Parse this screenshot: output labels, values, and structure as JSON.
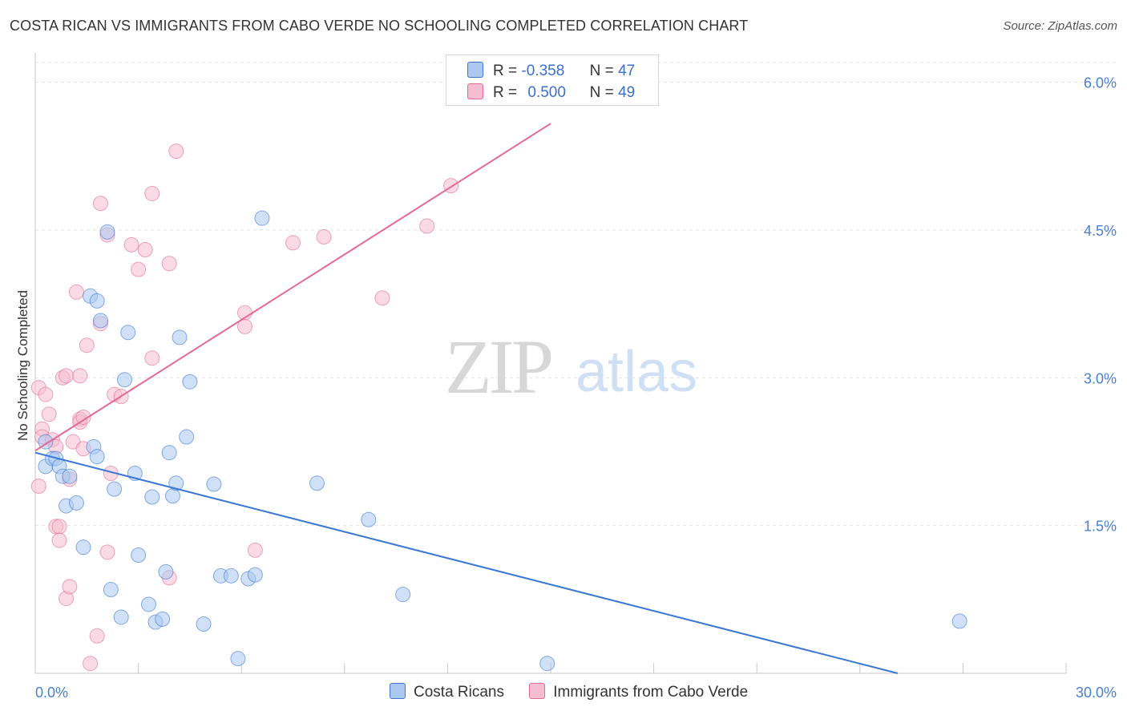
{
  "title": "COSTA RICAN VS IMMIGRANTS FROM CABO VERDE NO SCHOOLING COMPLETED CORRELATION CHART",
  "source": "Source: ZipAtlas.com",
  "watermark": {
    "zip": "ZIP",
    "atlas": "atlas"
  },
  "colors": {
    "blue": "#3a78d4",
    "pink": "#e36a93",
    "blue_fill": "#aac8f0",
    "pink_fill": "#f5bdd0"
  },
  "legend": {
    "rows": [
      {
        "r_label": "R =",
        "r_value": "-0.358",
        "n_label": "N =",
        "n_value": "47"
      },
      {
        "r_label": "R =",
        "r_value": "0.500",
        "n_label": "N =",
        "n_value": "49"
      }
    ]
  },
  "bottom_legend": [
    "Costa Ricans",
    "Immigrants from Cabo Verde"
  ],
  "chart_data": {
    "type": "scatter",
    "title": "COSTA RICAN VS IMMIGRANTS FROM CABO VERDE NO SCHOOLING COMPLETED CORRELATION CHART",
    "xlabel": "",
    "ylabel": "No Schooling Completed",
    "xlim": [
      0,
      30
    ],
    "ylim": [
      0,
      6.2
    ],
    "x_tick_labels": [
      "0.0%",
      "30.0%"
    ],
    "y_ticks": [
      1.5,
      3.0,
      4.5,
      6.0
    ],
    "y_tick_labels": [
      "1.5%",
      "3.0%",
      "4.5%",
      "6.0%"
    ],
    "series": [
      {
        "name": "Costa Ricans",
        "r": -0.358,
        "n": 47,
        "trend": [
          [
            0,
            2.24
          ],
          [
            25.1,
            0
          ]
        ],
        "points": [
          [
            0.3,
            2.35
          ],
          [
            0.3,
            2.1
          ],
          [
            0.5,
            2.18
          ],
          [
            0.6,
            2.18
          ],
          [
            0.7,
            2.1
          ],
          [
            0.8,
            2.0
          ],
          [
            0.9,
            1.7
          ],
          [
            1.0,
            2.0
          ],
          [
            1.2,
            1.73
          ],
          [
            1.4,
            1.28
          ],
          [
            1.6,
            3.83
          ],
          [
            1.7,
            2.3
          ],
          [
            1.8,
            3.78
          ],
          [
            1.8,
            2.2
          ],
          [
            1.9,
            3.58
          ],
          [
            2.1,
            4.48
          ],
          [
            2.2,
            0.85
          ],
          [
            2.3,
            1.87
          ],
          [
            2.5,
            0.57
          ],
          [
            2.6,
            2.98
          ],
          [
            2.7,
            3.46
          ],
          [
            2.9,
            2.03
          ],
          [
            3.0,
            1.2
          ],
          [
            3.3,
            0.7
          ],
          [
            3.4,
            1.79
          ],
          [
            3.5,
            0.52
          ],
          [
            3.7,
            0.55
          ],
          [
            3.8,
            1.03
          ],
          [
            3.9,
            2.24
          ],
          [
            4.0,
            1.8
          ],
          [
            4.1,
            1.93
          ],
          [
            4.2,
            3.41
          ],
          [
            4.4,
            2.4
          ],
          [
            4.5,
            2.96
          ],
          [
            4.9,
            0.5
          ],
          [
            5.2,
            1.92
          ],
          [
            5.4,
            0.99
          ],
          [
            5.7,
            0.99
          ],
          [
            5.9,
            0.15
          ],
          [
            6.2,
            0.96
          ],
          [
            6.4,
            1.0
          ],
          [
            6.6,
            4.62
          ],
          [
            8.2,
            1.93
          ],
          [
            9.7,
            1.56
          ],
          [
            10.7,
            0.8
          ],
          [
            14.9,
            0.1
          ],
          [
            26.9,
            0.53
          ]
        ]
      },
      {
        "name": "Immigrants from Cabo Verde",
        "r": 0.5,
        "n": 49,
        "trend": [
          [
            0,
            2.26
          ],
          [
            15.0,
            5.58
          ]
        ],
        "points": [
          [
            0.1,
            2.9
          ],
          [
            0.1,
            1.9
          ],
          [
            0.2,
            2.48
          ],
          [
            0.2,
            2.4
          ],
          [
            0.3,
            2.83
          ],
          [
            0.4,
            2.63
          ],
          [
            0.5,
            2.37
          ],
          [
            0.6,
            1.49
          ],
          [
            0.6,
            2.3
          ],
          [
            0.7,
            1.49
          ],
          [
            0.7,
            1.35
          ],
          [
            0.8,
            3.0
          ],
          [
            0.9,
            3.02
          ],
          [
            0.9,
            0.76
          ],
          [
            1.0,
            0.88
          ],
          [
            1.0,
            1.97
          ],
          [
            1.1,
            2.35
          ],
          [
            1.2,
            3.87
          ],
          [
            1.3,
            3.02
          ],
          [
            1.3,
            2.58
          ],
          [
            1.3,
            2.55
          ],
          [
            1.4,
            2.6
          ],
          [
            1.4,
            2.28
          ],
          [
            1.5,
            3.33
          ],
          [
            1.6,
            0.1
          ],
          [
            1.8,
            0.38
          ],
          [
            1.9,
            4.77
          ],
          [
            1.9,
            3.55
          ],
          [
            2.1,
            4.45
          ],
          [
            2.1,
            1.23
          ],
          [
            2.2,
            2.03
          ],
          [
            2.3,
            2.83
          ],
          [
            2.5,
            2.81
          ],
          [
            2.8,
            4.35
          ],
          [
            3.0,
            4.1
          ],
          [
            3.2,
            4.3
          ],
          [
            3.4,
            4.87
          ],
          [
            3.4,
            3.2
          ],
          [
            3.9,
            4.16
          ],
          [
            3.9,
            0.97
          ],
          [
            4.1,
            5.3
          ],
          [
            6.1,
            3.66
          ],
          [
            6.1,
            3.52
          ],
          [
            6.4,
            1.25
          ],
          [
            7.5,
            4.37
          ],
          [
            8.4,
            4.43
          ],
          [
            10.1,
            3.81
          ],
          [
            11.4,
            4.54
          ],
          [
            12.1,
            4.95
          ]
        ]
      }
    ]
  }
}
